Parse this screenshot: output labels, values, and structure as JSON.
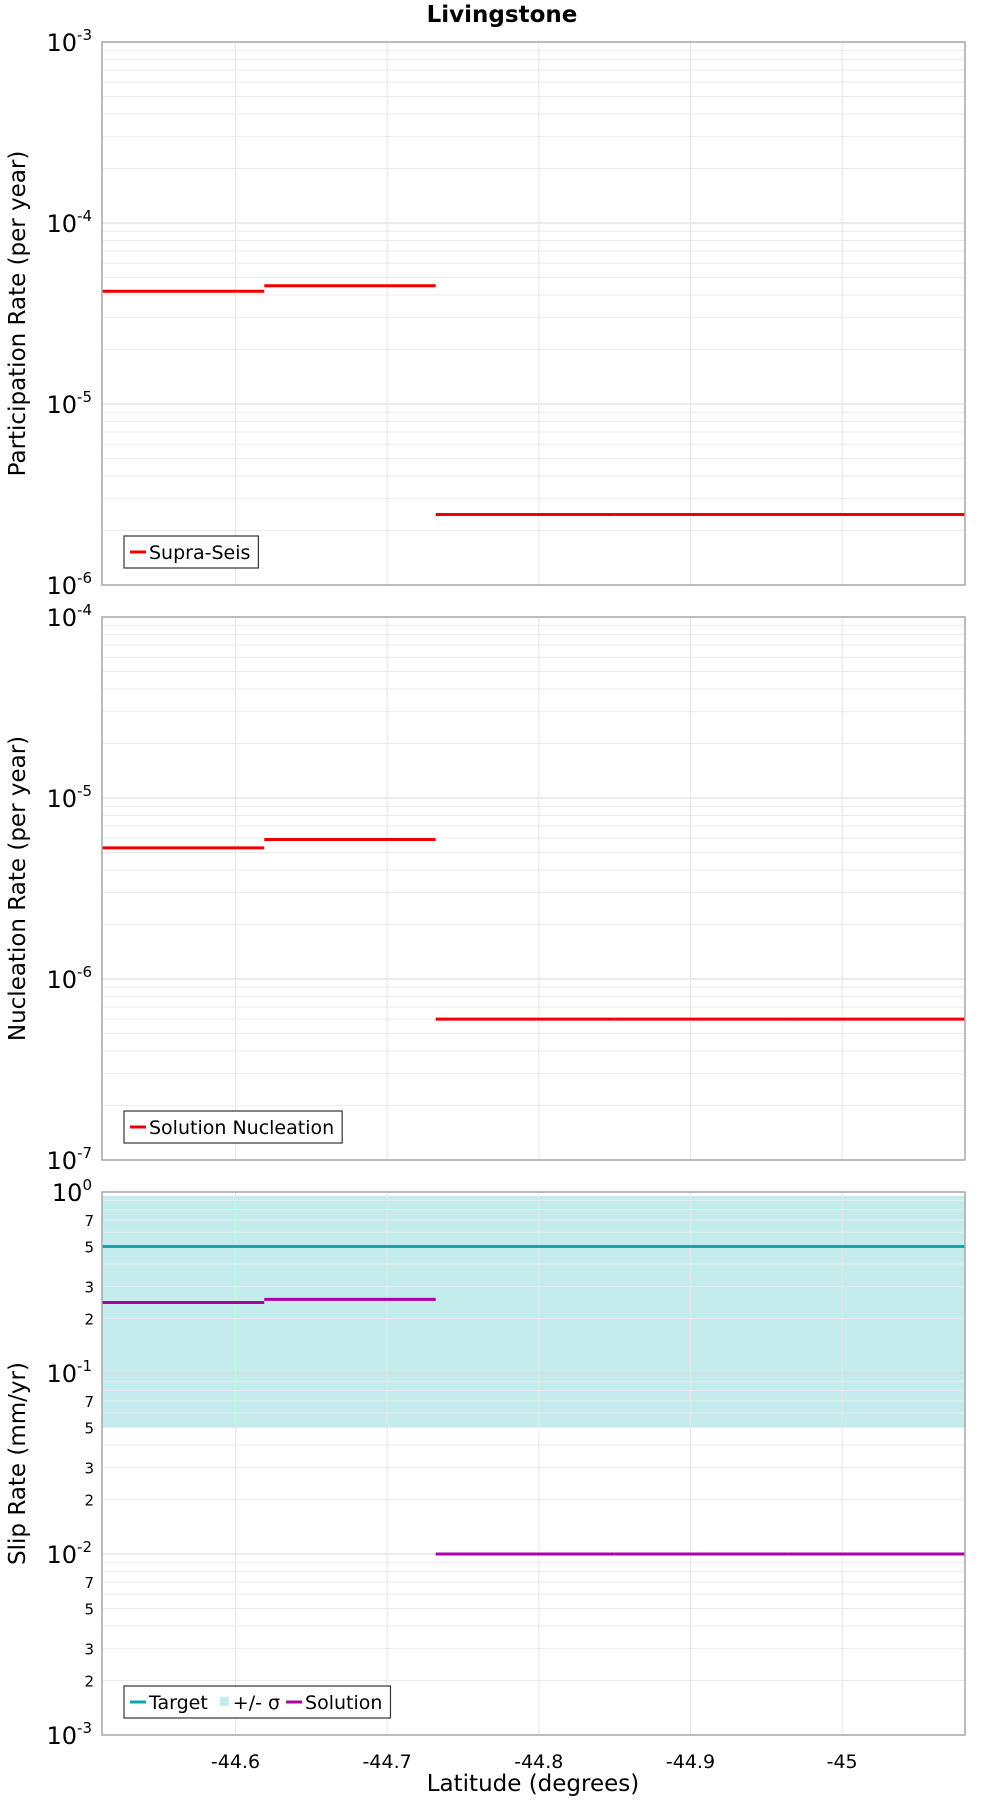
{
  "figure": {
    "title": "Livingstone",
    "xlabel": "Latitude (degrees)"
  },
  "chart_data": [
    {
      "type": "line",
      "step": true,
      "ylabel": "Participation Rate (per year)",
      "yscale": "log",
      "ylim": [
        1e-06,
        0.001
      ],
      "xlim": [
        -44.512,
        -45.081
      ],
      "x_ticks": [
        -44.6,
        -44.7,
        -44.8,
        -44.9,
        -45
      ],
      "x_tick_labels": [
        "-44.6",
        "-44.7",
        "-44.8",
        "-44.9",
        "-45"
      ],
      "y_ticks": [
        {
          "base": "10",
          "exp": "-6"
        },
        {
          "base": "10",
          "exp": "-5"
        },
        {
          "base": "10",
          "exp": "-4"
        },
        {
          "base": "10",
          "exp": "-3"
        }
      ],
      "grid": true,
      "legend": {
        "position": "bottom-left",
        "entries": [
          {
            "label": "Supra-Seis",
            "color": "#ee0000",
            "kind": "line"
          }
        ]
      },
      "series": [
        {
          "name": "Supra-Seis",
          "color": "#ee0000",
          "segments": [
            {
              "x": [
                -44.512,
                -44.619
              ],
              "y": 4.2e-05
            },
            {
              "x": [
                -44.619,
                -44.732
              ],
              "y": 4.5e-05
            },
            {
              "x": [
                -44.732,
                -44.85
              ],
              "y": 2.45e-06
            },
            {
              "x": [
                -44.85,
                -44.964
              ],
              "y": 2.45e-06
            },
            {
              "x": [
                -44.964,
                -45.081
              ],
              "y": 2.45e-06
            }
          ]
        }
      ]
    },
    {
      "type": "line",
      "step": true,
      "ylabel": "Nucleation Rate (per year)",
      "yscale": "log",
      "ylim": [
        1e-07,
        0.0001
      ],
      "xlim": [
        -44.512,
        -45.081
      ],
      "x_ticks": [
        -44.6,
        -44.7,
        -44.8,
        -44.9,
        -45
      ],
      "y_ticks": [
        {
          "base": "10",
          "exp": "-7"
        },
        {
          "base": "10",
          "exp": "-6"
        },
        {
          "base": "10",
          "exp": "-5"
        },
        {
          "base": "10",
          "exp": "-4"
        }
      ],
      "grid": true,
      "legend": {
        "position": "bottom-left",
        "entries": [
          {
            "label": "Solution Nucleation",
            "color": "#ee0000",
            "kind": "line"
          }
        ]
      },
      "series": [
        {
          "name": "Solution Nucleation",
          "color": "#ee0000",
          "segments": [
            {
              "x": [
                -44.512,
                -44.619
              ],
              "y": 5.3e-06
            },
            {
              "x": [
                -44.619,
                -44.732
              ],
              "y": 5.9e-06
            },
            {
              "x": [
                -44.732,
                -44.85
              ],
              "y": 6e-07
            },
            {
              "x": [
                -44.85,
                -44.964
              ],
              "y": 6e-07
            },
            {
              "x": [
                -44.964,
                -45.081
              ],
              "y": 6e-07
            }
          ]
        }
      ]
    },
    {
      "type": "line",
      "step": true,
      "ylabel": "Slip Rate (mm/yr)",
      "yscale": "log",
      "ylim": [
        0.001,
        1
      ],
      "xlim": [
        -44.512,
        -45.081
      ],
      "x_ticks": [
        -44.6,
        -44.7,
        -44.8,
        -44.9,
        -45
      ],
      "y_ticks": [
        {
          "base": "10",
          "exp": "-3"
        },
        {
          "base": "10",
          "exp": "-2"
        },
        {
          "base": "10",
          "exp": "-1"
        },
        {
          "base": "10",
          "exp": "0"
        }
      ],
      "y_minor_labels": [
        {
          "v": 0.002,
          "label": "2"
        },
        {
          "v": 0.003,
          "label": "3"
        },
        {
          "v": 0.005,
          "label": "5"
        },
        {
          "v": 0.007,
          "label": "7"
        },
        {
          "v": 0.02,
          "label": "2"
        },
        {
          "v": 0.03,
          "label": "3"
        },
        {
          "v": 0.05,
          "label": "5"
        },
        {
          "v": 0.07,
          "label": "7"
        },
        {
          "v": 0.2,
          "label": "2"
        },
        {
          "v": 0.3,
          "label": "3"
        },
        {
          "v": 0.5,
          "label": "5"
        },
        {
          "v": 0.7,
          "label": "7"
        }
      ],
      "grid": true,
      "legend": {
        "position": "bottom-left",
        "entries": [
          {
            "label": "Target",
            "color": "#00aaaa",
            "kind": "line"
          },
          {
            "label": "+/- σ",
            "color": "#c0ecec",
            "kind": "fill"
          },
          {
            "label": "Solution",
            "color": "#aa00aa",
            "kind": "line"
          }
        ]
      },
      "bands": [
        {
          "name": "+/- σ",
          "color": "#c4ecec",
          "y_low": 0.05,
          "y_high": 0.95,
          "x": [
            -44.512,
            -45.081
          ]
        }
      ],
      "series": [
        {
          "name": "Target",
          "color": "#11aaaa",
          "segments": [
            {
              "x": [
                -44.512,
                -45.081
              ],
              "y": 0.5
            }
          ]
        },
        {
          "name": "Solution",
          "color": "#aa00aa",
          "segments": [
            {
              "x": [
                -44.512,
                -44.619
              ],
              "y": 0.245
            },
            {
              "x": [
                -44.619,
                -44.732
              ],
              "y": 0.255
            },
            {
              "x": [
                -44.732,
                -44.85
              ],
              "y": 0.01
            },
            {
              "x": [
                -44.85,
                -44.964
              ],
              "y": 0.01
            },
            {
              "x": [
                -44.964,
                -45.081
              ],
              "y": 0.01
            }
          ]
        }
      ]
    }
  ]
}
